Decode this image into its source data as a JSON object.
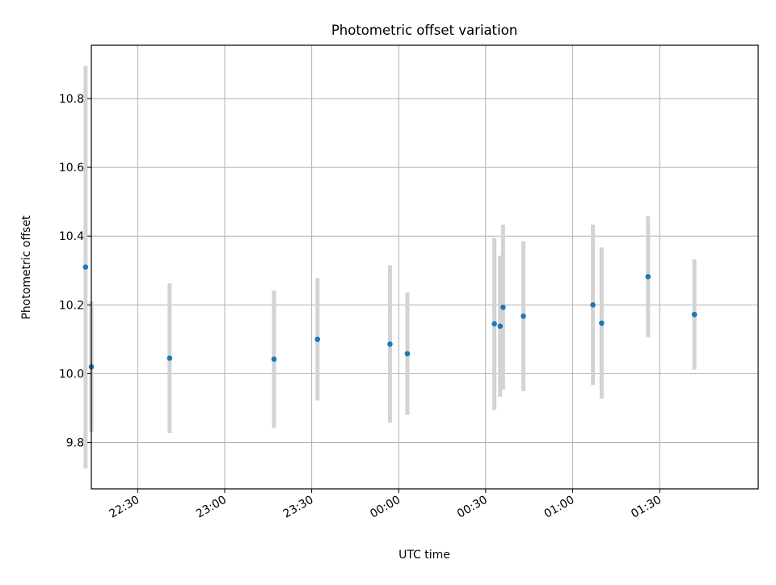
{
  "chart_data": {
    "type": "scatter",
    "title": "Photometric offset variation",
    "xlabel": "UTC time",
    "ylabel": "Photometric offset",
    "x_axis_type": "time",
    "xlim": [
      "22:14",
      "02:04"
    ],
    "ylim": [
      9.665,
      10.955
    ],
    "x_ticks": [
      "22:30",
      "23:00",
      "23:30",
      "00:00",
      "00:30",
      "01:00",
      "01:30"
    ],
    "y_ticks": [
      9.8,
      10.0,
      10.2,
      10.4,
      10.6,
      10.8
    ],
    "grid": true,
    "legend": "none",
    "marker_color": "#1f77b4",
    "errorbar_color": "#d3d3d3",
    "series": [
      {
        "points": [
          {
            "x": "22:12",
            "y": 10.31,
            "yerr": 0.585
          },
          {
            "x": "22:14",
            "y": 10.02,
            "yerr": 0.19
          },
          {
            "x": "22:41",
            "y": 10.045,
            "yerr": 0.218
          },
          {
            "x": "23:17",
            "y": 10.042,
            "yerr": 0.2
          },
          {
            "x": "23:32",
            "y": 10.1,
            "yerr": 0.178
          },
          {
            "x": "23:57",
            "y": 10.086,
            "yerr": 0.229
          },
          {
            "x": "00:03",
            "y": 10.058,
            "yerr": 0.178
          },
          {
            "x": "00:33",
            "y": 10.145,
            "yerr": 0.25
          },
          {
            "x": "00:35",
            "y": 10.138,
            "yerr": 0.205
          },
          {
            "x": "00:36",
            "y": 10.193,
            "yerr": 0.24
          },
          {
            "x": "00:43",
            "y": 10.167,
            "yerr": 0.218
          },
          {
            "x": "01:07",
            "y": 10.2,
            "yerr": 0.233
          },
          {
            "x": "01:10",
            "y": 10.147,
            "yerr": 0.22
          },
          {
            "x": "01:26",
            "y": 10.282,
            "yerr": 0.176
          },
          {
            "x": "01:42",
            "y": 10.172,
            "yerr": 0.16
          }
        ]
      }
    ]
  }
}
